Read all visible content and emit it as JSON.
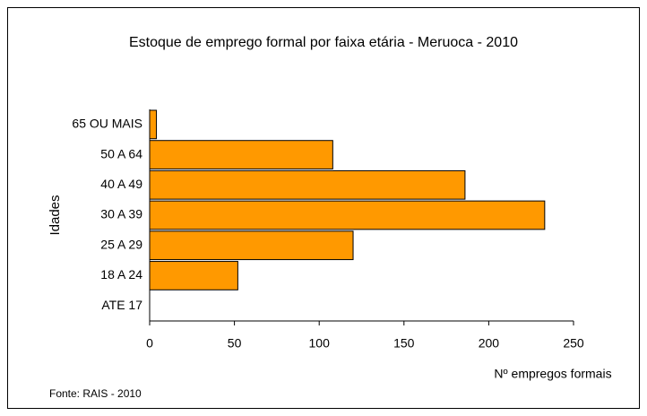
{
  "chart_data": {
    "type": "hbar",
    "title": "Estoque de emprego formal por faixa etária - Meruoca - 2010",
    "y_label": "Idades",
    "x_label": "Nº empregos formais",
    "source": "Fonte: RAIS - 2010",
    "categories": [
      "ATE 17",
      "18 A 24",
      "25 A 29",
      "30 A 39",
      "40 A 49",
      "50 A 64",
      "65 OU MAIS"
    ],
    "values": [
      0,
      52,
      120,
      233,
      186,
      108,
      4
    ],
    "color": "#ff9900",
    "xlim": [
      0,
      250
    ],
    "xticks": [
      0,
      50,
      100,
      150,
      200,
      250
    ]
  }
}
